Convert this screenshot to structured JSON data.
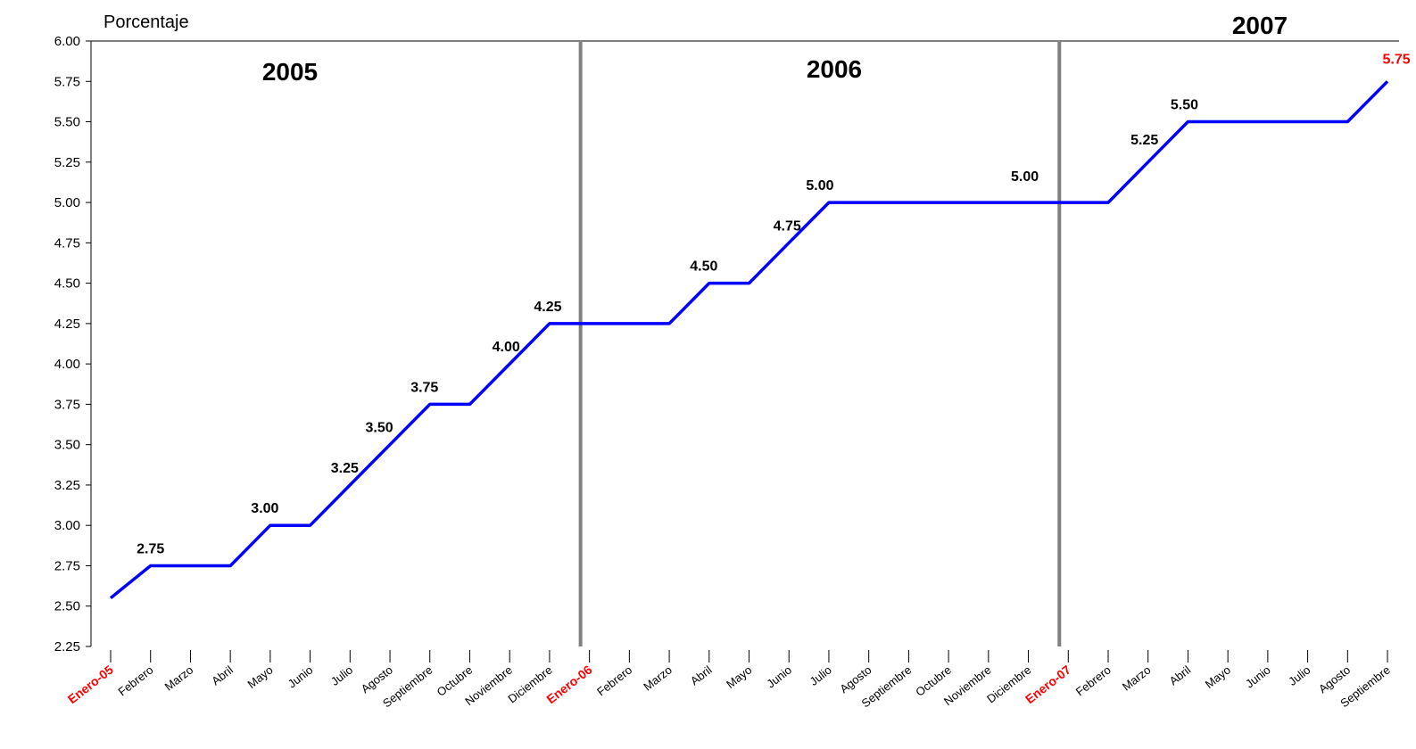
{
  "chart_data": {
    "type": "line",
    "ylabel": "Porcentaje",
    "ylim": [
      2.25,
      6.0
    ],
    "yticks": [
      "2.25",
      "2.50",
      "2.75",
      "3.00",
      "3.25",
      "3.50",
      "3.75",
      "4.00",
      "4.25",
      "4.50",
      "4.75",
      "5.00",
      "5.25",
      "5.50",
      "5.75",
      "6.00"
    ],
    "categories": [
      "Enero-05",
      "Febrero",
      "Marzo",
      "Abril",
      "Mayo",
      "Junio",
      "Julio",
      "Agosto",
      "Septiembre",
      "Octubre",
      "Noviembre",
      "Diciembre",
      "Enero-06",
      "Febrero",
      "Marzo",
      "Abril",
      "Mayo",
      "Junio",
      "Julio",
      "Agosto",
      "Septiembre",
      "Octubre",
      "Noviembre",
      "Diciembre",
      "Enero-07",
      "Febrero",
      "Marzo",
      "Abril",
      "Mayo",
      "Junio",
      "Julio",
      "Agosto",
      "Septiembre"
    ],
    "highlighted_categories": [
      0,
      12,
      24
    ],
    "values": [
      2.55,
      2.75,
      2.75,
      2.75,
      3.0,
      3.0,
      3.25,
      3.5,
      3.75,
      3.75,
      4.0,
      4.25,
      4.25,
      4.25,
      4.25,
      4.5,
      4.5,
      4.75,
      5.0,
      5.0,
      5.0,
      5.0,
      5.0,
      5.0,
      5.0,
      5.0,
      5.25,
      5.5,
      5.5,
      5.5,
      5.5,
      5.5,
      5.75
    ],
    "line_color": "#0000ff",
    "highlight_color": "#ff0000",
    "separator_color": "#808080",
    "data_labels": [
      {
        "index": 1,
        "text": "2.75"
      },
      {
        "index": 4,
        "text": "3.00"
      },
      {
        "index": 6,
        "text": "3.25"
      },
      {
        "index": 7,
        "text": "3.50"
      },
      {
        "index": 8,
        "text": "3.75"
      },
      {
        "index": 10,
        "text": "4.00"
      },
      {
        "index": 11,
        "text": "4.25"
      },
      {
        "index": 15,
        "text": "4.50"
      },
      {
        "index": 17,
        "text": "4.75"
      },
      {
        "index": 18,
        "text": "5.00"
      },
      {
        "index": 23,
        "text": "5.00"
      },
      {
        "index": 26,
        "text": "5.25"
      },
      {
        "index": 27,
        "text": "5.50"
      },
      {
        "index": 32,
        "text": "5.75",
        "highlight": true
      }
    ],
    "year_labels": [
      "2005",
      "2006",
      "2007"
    ],
    "year_separators_after": [
      "Diciembre",
      "Diciembre"
    ],
    "grid": false
  }
}
